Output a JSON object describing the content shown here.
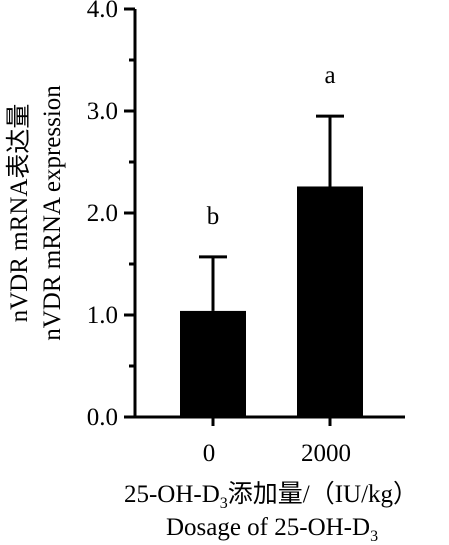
{
  "chart_data": {
    "type": "bar",
    "categories": [
      "0",
      "2000"
    ],
    "values": [
      1.04,
      2.26
    ],
    "errors": [
      0.53,
      0.69
    ],
    "significance_labels": [
      "b",
      "a"
    ],
    "ylim": [
      0,
      4
    ],
    "yticks": [
      "0.0",
      "1.0",
      "2.0",
      "3.0",
      "4.0"
    ],
    "ylabel_line1": "nVDR mRNA表达量",
    "ylabel_line2": "nVDR mRNA  expression",
    "xlabel_line1_prefix": "25-OH-D",
    "xlabel_line1_sub": "3",
    "xlabel_line1_suffix": "添加量/（IU/kg）",
    "xlabel_line2_prefix": "Dosage of 25-OH-D",
    "xlabel_line2_sub": "3",
    "bar_color": "#000000",
    "grid": false,
    "legend": "none"
  }
}
